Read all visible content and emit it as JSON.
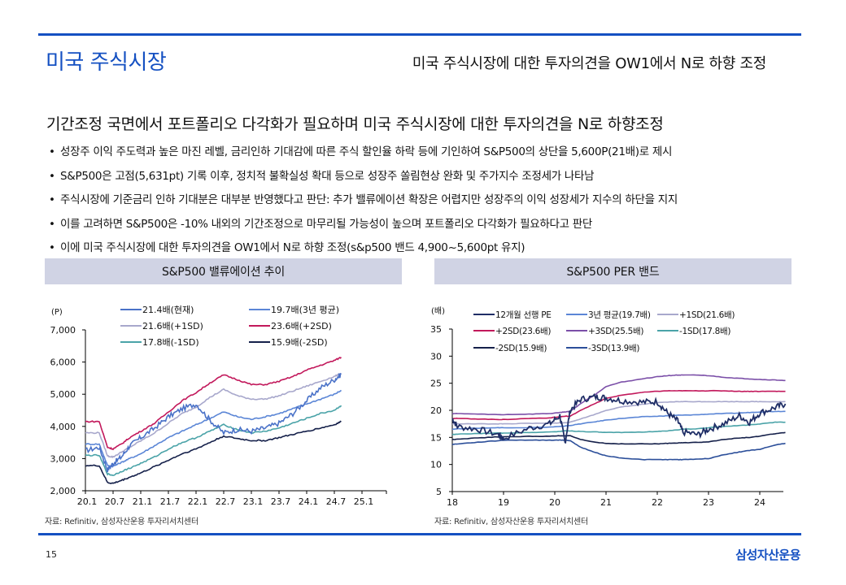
{
  "header": {
    "title": "미국 주식시장",
    "subtitle": "미국 주식시장에 대한 투자의견을 OW1에서 N로 하향 조정"
  },
  "headline": "기간조정 국면에서 포트폴리오 다각화가 필요하며 미국 주식시장에 대한 투자의견을 N로 하향조정",
  "bullets": [
    "성장주 이익 주도력과 높은 마진 레벨, 금리인하 기대감에 따른 주식 할인율 하락 등에 기인하여 S&P500의 상단을 5,600P(21배)로 제시",
    "S&P500은 고점(5,631pt) 기록 이후, 정치적 불확실성 확대 등으로 성장주 쏠림현상 완화 및 주가지수 조정세가 나타남",
    "주식시장에 기준금리 인하 기대분은 대부분 반영했다고 판단: 추가 밸류에이션 확장은 어렵지만 성장주의 이익 성장세가 지수의 하단을 지지",
    "이를 고려하면 S&P500은 -10% 내외의 기간조정으로 마무리될 가능성이 높으며 포트폴리오 다각화가 필요하다고 판단",
    "이에 미국 주식시장에 대한 투자의견을 OW1에서 N로 하향 조정(s&p500 밴드 4,900~5,600pt 유지)"
  ],
  "footer": {
    "page_number": "15",
    "brand": "삼성자산운용"
  },
  "colors": {
    "accent": "#1450c2",
    "banner": "#d0d3e4"
  },
  "chart_data": [
    {
      "type": "line",
      "title": "S&P500 밸류에이션 추이",
      "ylabel": "(P)",
      "xlabel": "",
      "ylim": [
        2000,
        7000
      ],
      "yticks": [
        "7,000",
        "6,000",
        "5,000",
        "4,000",
        "3,000",
        "2,000"
      ],
      "ytick_values": [
        7000,
        6000,
        5000,
        4000,
        3000,
        2000
      ],
      "xticks": [
        "20.1",
        "20.7",
        "21.1",
        "21.7",
        "22.1",
        "22.7",
        "23.1",
        "23.7",
        "24.1",
        "24.7",
        "25.1"
      ],
      "xlim_index": [
        0,
        11
      ],
      "legend_position": "top",
      "source": "자료: Refinitiv, 삼성자산운용 투자리서치센터",
      "x": [
        0,
        0.5,
        0.8,
        1.0,
        1.3,
        1.6,
        2.0,
        2.5,
        3.0,
        3.5,
        4.0,
        4.5,
        5.0,
        5.5,
        6.0,
        6.5,
        7.0,
        7.5,
        8.0,
        8.5,
        9.0,
        9.25
      ],
      "series": [
        {
          "name": "21.4배(현재)",
          "color": "#4a72c8",
          "values": [
            3250,
            3350,
            2650,
            2850,
            3050,
            3400,
            3650,
            3950,
            4300,
            4550,
            4700,
            4200,
            3800,
            3900,
            3850,
            3950,
            4100,
            4400,
            4800,
            5200,
            5450,
            5620
          ]
        },
        {
          "name": "19.7배(3년 평균)",
          "color": "#5b86d6",
          "values": [
            3450,
            3450,
            2780,
            2760,
            2880,
            3000,
            3150,
            3400,
            3650,
            3850,
            4050,
            4250,
            4450,
            4300,
            4220,
            4300,
            4400,
            4550,
            4700,
            4850,
            5000,
            5120
          ]
        },
        {
          "name": "21.6배(+1SD)",
          "color": "#a8a8cc",
          "values": [
            3800,
            3800,
            3080,
            3050,
            3200,
            3350,
            3550,
            3800,
            4100,
            4400,
            4600,
            4900,
            5150,
            4950,
            4850,
            4850,
            4950,
            5100,
            5250,
            5400,
            5550,
            5650
          ]
        },
        {
          "name": "23.6배(+2SD)",
          "color": "#c2185b",
          "values": [
            4150,
            4150,
            3350,
            3300,
            3450,
            3650,
            3850,
            4100,
            4450,
            4800,
            5050,
            5350,
            5600,
            5450,
            5300,
            5300,
            5400,
            5550,
            5750,
            5900,
            6050,
            6150
          ]
        },
        {
          "name": "17.8배(-1SD)",
          "color": "#4aa3a8",
          "values": [
            3100,
            3100,
            2520,
            2480,
            2600,
            2700,
            2850,
            3050,
            3300,
            3500,
            3650,
            3850,
            4050,
            3900,
            3800,
            3850,
            3950,
            4100,
            4250,
            4400,
            4500,
            4650
          ]
        },
        {
          "name": "15.9배(-2SD)",
          "color": "#15204a",
          "values": [
            2780,
            2780,
            2250,
            2230,
            2320,
            2420,
            2550,
            2750,
            2950,
            3150,
            3300,
            3500,
            3700,
            3620,
            3560,
            3560,
            3650,
            3750,
            3850,
            3950,
            4050,
            4150
          ]
        }
      ]
    },
    {
      "type": "line",
      "title": "S&P500 PER 밴드",
      "ylabel": "(배)",
      "xlabel": "",
      "ylim": [
        5,
        35
      ],
      "yticks": [
        "35",
        "30",
        "25",
        "20",
        "15",
        "10",
        "5"
      ],
      "ytick_values": [
        35,
        30,
        25,
        20,
        15,
        10,
        5
      ],
      "xticks": [
        "18",
        "19",
        "20",
        "21",
        "22",
        "23",
        "24"
      ],
      "xlim": [
        18,
        24.5
      ],
      "legend_position": "top",
      "source": "자료: Refinitiv, 삼성자산운용 투자리서치센터",
      "x": [
        18.0,
        18.1,
        18.5,
        18.9,
        19.0,
        19.5,
        19.9,
        20.1,
        20.2,
        20.3,
        20.5,
        20.8,
        21.0,
        21.3,
        21.7,
        22.0,
        22.2,
        22.4,
        22.5,
        22.8,
        23.0,
        23.3,
        23.6,
        23.8,
        24.0,
        24.3,
        24.5
      ],
      "series": [
        {
          "name": "12개월 선행 PE",
          "color": "#1f2e66",
          "values": [
            18.5,
            17.0,
            16.5,
            15.5,
            14.8,
            16.7,
            17.5,
            19.0,
            14.0,
            20.0,
            22.0,
            22.5,
            22.3,
            21.8,
            21.5,
            21.6,
            19.5,
            18.0,
            16.0,
            15.5,
            16.5,
            17.5,
            19.0,
            17.8,
            19.5,
            20.5,
            21.2
          ]
        },
        {
          "name": "3년 평균(19.7배)",
          "color": "#5b86d6",
          "values": [
            16.5,
            16.6,
            16.7,
            16.8,
            16.8,
            16.8,
            16.9,
            17.0,
            17.1,
            17.2,
            17.5,
            17.9,
            18.2,
            18.5,
            18.8,
            18.9,
            19.0,
            19.1,
            19.1,
            19.2,
            19.3,
            19.4,
            19.5,
            19.6,
            19.7,
            19.8,
            19.8
          ]
        },
        {
          "name": "+1SD(21.6배)",
          "color": "#a8a8cc",
          "values": [
            17.5,
            17.5,
            17.5,
            17.5,
            17.5,
            17.6,
            17.6,
            17.7,
            17.7,
            17.8,
            18.4,
            19.3,
            20.0,
            20.6,
            21.1,
            21.4,
            21.5,
            21.6,
            21.6,
            21.6,
            21.6,
            21.6,
            21.6,
            21.6,
            21.6,
            21.6,
            21.6
          ]
        },
        {
          "name": "+2SD(23.6배)",
          "color": "#c2185b",
          "values": [
            18.5,
            18.5,
            18.4,
            18.3,
            18.3,
            18.5,
            18.6,
            18.8,
            18.9,
            18.9,
            20.0,
            21.3,
            22.2,
            22.8,
            23.3,
            23.5,
            23.6,
            23.6,
            23.6,
            23.6,
            23.6,
            23.6,
            23.5,
            23.5,
            23.5,
            23.5,
            23.5
          ]
        },
        {
          "name": "+3SD(25.5배)",
          "color": "#7b4fa8",
          "values": [
            19.4,
            19.4,
            19.3,
            19.2,
            19.2,
            19.3,
            19.4,
            19.6,
            19.7,
            19.8,
            21.2,
            23.0,
            24.4,
            25.2,
            25.8,
            26.2,
            26.4,
            26.5,
            26.5,
            26.5,
            26.4,
            26.1,
            25.9,
            25.8,
            25.7,
            25.6,
            25.5
          ]
        },
        {
          "name": "-1SD(17.8배)",
          "color": "#4aa3a8",
          "values": [
            15.5,
            15.6,
            15.7,
            15.8,
            15.8,
            15.9,
            16.0,
            16.1,
            16.2,
            16.2,
            16.1,
            16.0,
            15.9,
            15.9,
            16.0,
            16.1,
            16.2,
            16.4,
            16.5,
            16.6,
            16.8,
            17.0,
            17.2,
            17.3,
            17.5,
            17.8,
            17.8
          ]
        },
        {
          "name": "-2SD(15.9배)",
          "color": "#15204a",
          "values": [
            14.6,
            14.7,
            14.9,
            15.1,
            15.1,
            15.2,
            15.2,
            15.3,
            15.3,
            15.3,
            14.6,
            14.1,
            13.9,
            13.8,
            13.8,
            13.8,
            13.9,
            14.0,
            14.0,
            14.1,
            14.2,
            14.6,
            14.9,
            15.0,
            15.2,
            15.7,
            15.9
          ]
        },
        {
          "name": "-3SD(13.9배)",
          "color": "#2c4f9a",
          "values": [
            13.7,
            13.8,
            14.1,
            14.4,
            14.5,
            14.5,
            14.5,
            14.5,
            14.5,
            14.4,
            13.2,
            12.2,
            11.6,
            11.2,
            10.9,
            10.9,
            10.9,
            10.9,
            10.9,
            11.0,
            11.1,
            11.8,
            12.3,
            12.6,
            12.8,
            13.6,
            13.9
          ]
        }
      ]
    }
  ]
}
